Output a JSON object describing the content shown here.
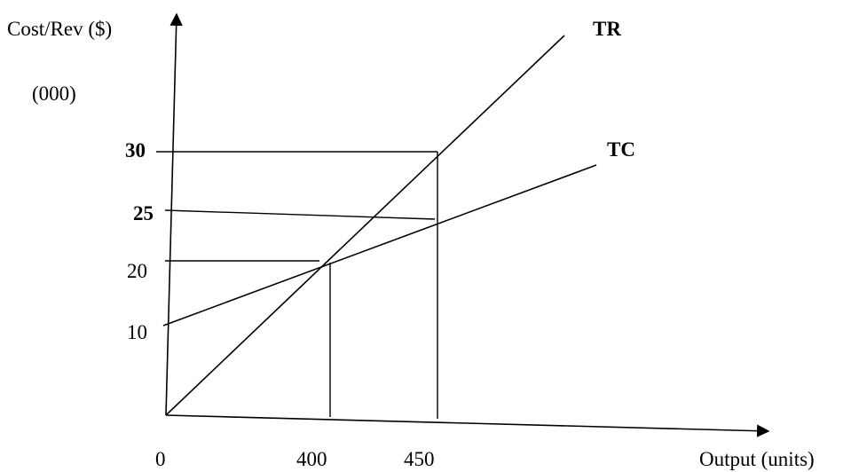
{
  "chart_data": {
    "type": "line",
    "xlabel": "Output (units)",
    "ylabel": "Cost/Rev ($)",
    "ylabel_units": "(000)",
    "x_ticks": [
      {
        "value": 0,
        "label": "0"
      },
      {
        "value": 400,
        "label": "400"
      },
      {
        "value": 450,
        "label": "450"
      }
    ],
    "y_ticks": [
      {
        "value": 10,
        "label": "10",
        "bold": false
      },
      {
        "value": 20,
        "label": "20",
        "bold": false
      },
      {
        "value": 25,
        "label": "25",
        "bold": true
      },
      {
        "value": 30,
        "label": "30",
        "bold": true
      }
    ],
    "series": [
      {
        "name": "TR",
        "points": [
          [
            0,
            0
          ],
          [
            400,
            20
          ],
          [
            450,
            30
          ]
        ]
      },
      {
        "name": "TC",
        "points": [
          [
            0,
            10
          ],
          [
            400,
            20
          ],
          [
            450,
            25
          ]
        ]
      }
    ],
    "guides": [
      {
        "kind": "h",
        "y": 30,
        "x": 450
      },
      {
        "kind": "h",
        "y": 25,
        "x": 450
      },
      {
        "kind": "h",
        "y": 20,
        "x": 400
      },
      {
        "kind": "v",
        "x": 400,
        "y": 20
      },
      {
        "kind": "v",
        "x": 450,
        "y": 30
      }
    ],
    "grid": false,
    "legend": "none"
  }
}
